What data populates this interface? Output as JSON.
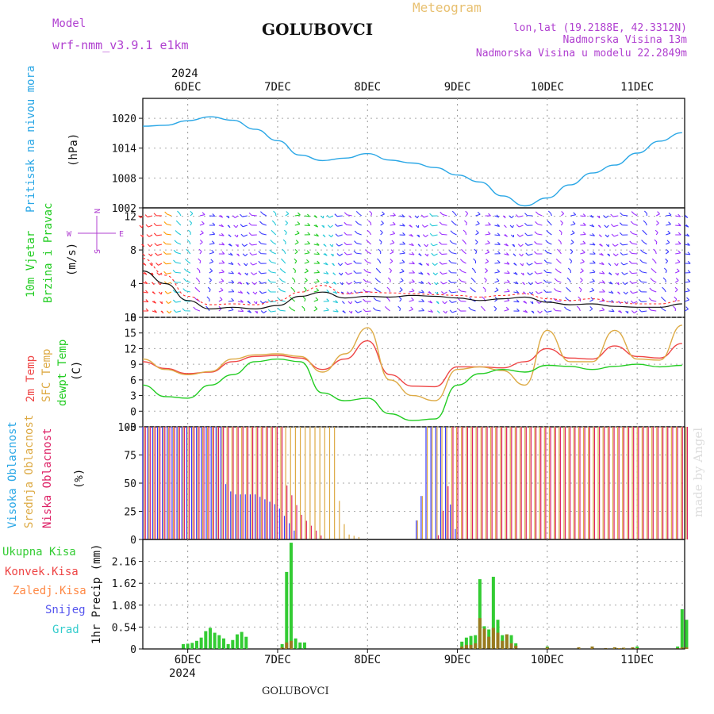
{
  "header": {
    "model_label": "Model",
    "model_name": "wrf-nmm_v3.9.1  e1km",
    "title": "GOLUBOVCI",
    "subtitle": "Meteogram",
    "lonlat": "lon,lat (19.2188E, 42.3312N)",
    "elevation": "Nadmorska Visina 13m",
    "model_elevation": "Nadmorska Visina u modelu 22.2849m",
    "footer": "GOLUBOVCI",
    "watermark": "made by Angel"
  },
  "colors": {
    "pressure": "#2aa7e6",
    "wind_purple": "#9b30ff",
    "wind_blue": "#3a3aff",
    "wind_cyan": "#22c8d8",
    "wind_green": "#22cc22",
    "wind_orange": "#ff9a00",
    "wind_red": "#ff3030",
    "t2m": "#ee4444",
    "sfc": "#ddaa44",
    "dewpt": "#22cc22",
    "cloud_high": "#3a3aff",
    "cloud_mid": "#ddaa44",
    "cloud_low": "#dd2266",
    "precip_total": "#33cc33",
    "precip_conv": "#ee4444",
    "precip_frozen": "#ff8844",
    "snow": "#5555ee",
    "hail": "#33cccc"
  },
  "chart_data": [
    {
      "type": "line",
      "name": "pressure",
      "ylabel_lines": [
        "Pritisak na nivou mora",
        "(hPa)"
      ],
      "ylim": [
        1002,
        1024
      ],
      "yticks": [
        1002,
        1008,
        1014,
        1020
      ],
      "x_days": [
        0,
        0.25,
        0.5,
        0.75,
        1.0,
        1.25,
        1.5,
        1.75,
        2.0,
        2.25,
        2.5,
        2.75,
        3.0,
        3.25,
        3.5,
        3.75,
        4.0,
        4.25,
        4.5,
        4.75,
        5.0,
        5.25,
        5.5,
        5.75,
        6.0
      ],
      "values": [
        1018.4,
        1018.6,
        1019.5,
        1020.3,
        1019.6,
        1017.8,
        1015.5,
        1012.6,
        1011.5,
        1012.0,
        1012.9,
        1011.6,
        1011.0,
        1010.1,
        1008.6,
        1007.2,
        1004.4,
        1002.4,
        1004.0,
        1006.6,
        1009.0,
        1010.6,
        1013.0,
        1015.4,
        1017.1
      ]
    },
    {
      "type": "wind_barbs",
      "name": "wind",
      "ylabel_lines": [
        "10m Vjetar",
        "Brzina i Pravac",
        "(m/s)"
      ],
      "compass": [
        "N",
        "S",
        "E",
        "W"
      ],
      "ylim": [
        0,
        13
      ],
      "yticks": [
        0,
        4,
        8,
        12
      ],
      "x_days": [
        0,
        0.25,
        0.5,
        0.75,
        1.0,
        1.25,
        1.5,
        1.75,
        2.0,
        2.25,
        2.5,
        2.75,
        3.0,
        3.25,
        3.5,
        3.75,
        4.0,
        4.25,
        4.5,
        4.75,
        5.0,
        5.25,
        5.5,
        5.75,
        6.0
      ],
      "speed": [
        5.5,
        4.0,
        2.0,
        1.0,
        1.2,
        1.0,
        1.4,
        2.5,
        3.0,
        2.3,
        2.5,
        2.4,
        2.6,
        2.5,
        2.3,
        2.0,
        2.2,
        2.4,
        1.8,
        1.5,
        1.6,
        1.3,
        1.2,
        1.2,
        1.6
      ],
      "gust": [
        7.0,
        5.0,
        2.5,
        1.5,
        1.6,
        1.5,
        2.0,
        3.0,
        3.8,
        2.8,
        3.0,
        2.9,
        2.8,
        2.7,
        2.6,
        2.4,
        2.6,
        2.8,
        2.2,
        2.0,
        2.2,
        1.8,
        1.6,
        1.6,
        2.0
      ]
    },
    {
      "type": "line",
      "name": "temperature",
      "ylabel_lines": [
        "2m Temp",
        "SFC Temp",
        "dewpt Temp",
        "(C)"
      ],
      "ylim": [
        -3,
        18
      ],
      "yticks": [
        -3,
        0,
        3,
        6,
        9,
        12,
        15,
        18
      ],
      "x_days": [
        0,
        0.25,
        0.5,
        0.75,
        1.0,
        1.25,
        1.5,
        1.75,
        2.0,
        2.25,
        2.5,
        2.75,
        3.0,
        3.25,
        3.5,
        3.75,
        4.0,
        4.25,
        4.5,
        4.75,
        5.0,
        5.25,
        5.5,
        5.75,
        6.0
      ],
      "series": [
        {
          "name": "2m Temp",
          "values": [
            9.5,
            8.2,
            7.2,
            7.5,
            9.5,
            10.5,
            10.7,
            10.2,
            8.0,
            10.0,
            13.5,
            7.0,
            4.8,
            4.7,
            8.5,
            8.5,
            8.3,
            9.5,
            12.0,
            10.2,
            10.0,
            12.5,
            10.5,
            10.2,
            13.0
          ]
        },
        {
          "name": "SFC Temp",
          "values": [
            10.0,
            8.0,
            7.0,
            7.6,
            10.0,
            10.8,
            11.0,
            10.5,
            7.5,
            11.0,
            16.0,
            6.0,
            3.0,
            2.0,
            8.0,
            8.5,
            7.8,
            5.0,
            15.5,
            9.5,
            9.5,
            15.5,
            10.0,
            9.8,
            16.5
          ]
        },
        {
          "name": "dewpt Temp",
          "values": [
            5.0,
            2.8,
            2.5,
            5.0,
            7.0,
            9.5,
            10.0,
            9.5,
            3.5,
            2.0,
            2.5,
            -0.5,
            -1.8,
            -1.5,
            5.0,
            7.2,
            8.0,
            7.5,
            8.8,
            8.6,
            8.0,
            8.6,
            9.0,
            8.5,
            8.8
          ]
        }
      ]
    },
    {
      "type": "bar",
      "name": "clouds",
      "ylabel_lines": [
        "Visoka Oblacnost",
        "Srednja Oblacnost",
        "Niska Oblacnost",
        "(%)"
      ],
      "ylim": [
        0,
        100
      ],
      "yticks": [
        0,
        25,
        50,
        75,
        100
      ],
      "x_days": [
        0,
        0.25,
        0.5,
        0.75,
        1.0,
        1.25,
        1.5,
        1.75,
        2.0,
        2.25,
        2.5,
        2.75,
        3.0,
        3.25,
        3.5,
        3.75,
        4.0,
        4.25,
        4.5,
        4.75,
        5.0,
        5.25,
        5.5,
        5.75,
        6.0
      ],
      "series": [
        {
          "name": "Visoka Oblacnost",
          "values": [
            100,
            100,
            100,
            70,
            40,
            40,
            30,
            0,
            0,
            0,
            0,
            0,
            0,
            100,
            0,
            0,
            0,
            0,
            0,
            0,
            0,
            0,
            0,
            0,
            0
          ]
        },
        {
          "name": "Srednja Oblacnost",
          "values": [
            100,
            100,
            100,
            100,
            100,
            100,
            100,
            100,
            100,
            5,
            0,
            0,
            0,
            100,
            100,
            100,
            100,
            100,
            100,
            100,
            100,
            100,
            100,
            100,
            100
          ]
        },
        {
          "name": "Niska Oblacnost",
          "values": [
            100,
            100,
            100,
            80,
            100,
            100,
            60,
            20,
            0,
            0,
            0,
            0,
            0,
            0,
            100,
            100,
            100,
            100,
            100,
            100,
            100,
            100,
            100,
            100,
            100
          ]
        }
      ]
    },
    {
      "type": "bar",
      "name": "precipitation",
      "ylabel_lines": [
        "1hr Precip (mm)"
      ],
      "legend": [
        "Ukupna Kisa",
        "Konvek.Kisa",
        "Zaledj.Kisa",
        "Snijeg",
        "Grad"
      ],
      "ylim": [
        0,
        2.7
      ],
      "yticks": [
        0,
        0.54,
        1.08,
        1.62,
        2.16
      ],
      "x_days": [
        0.3,
        0.35,
        0.4,
        0.45,
        0.5,
        0.55,
        0.6,
        0.65,
        0.7,
        0.75,
        0.8,
        0.85,
        0.9,
        0.95,
        1.05,
        1.1,
        1.15,
        1.2,
        1.25,
        1.28,
        1.35,
        1.4,
        1.45,
        1.55,
        1.6,
        1.62,
        1.65,
        1.7,
        1.75,
        3.55,
        3.6,
        3.65,
        3.7,
        3.75,
        3.8,
        3.85,
        3.9,
        3.95,
        4.0,
        4.05,
        4.1,
        4.15,
        4.2,
        4.25,
        4.5,
        5.05,
        5.1,
        5.15,
        5.2,
        5.25,
        5.3,
        5.35,
        5.4,
        5.45,
        5.5,
        5.55,
        5.6,
        5.65,
        5.95,
        6.0,
        6.05
      ],
      "values": [
        0,
        0,
        0,
        0,
        0,
        0,
        0,
        0,
        0,
        0,
        0,
        0,
        0,
        0,
        0.1,
        0.1,
        0.12,
        0.2,
        0.28,
        0.46,
        0.4,
        0.34,
        0.3,
        0.22,
        0.16,
        0.08,
        0,
        0.2,
        0,
        0.28,
        0.3,
        0.32,
        0.4,
        0.36,
        0.38,
        1.08,
        1.75,
        0.72,
        0.94,
        0.56,
        0.44,
        0.34,
        0.24,
        0.06,
        0.16,
        0.04,
        0.06,
        0.02,
        0.04,
        0.06,
        0.02,
        0.05,
        0.02,
        0.14,
        0.08,
        0.05,
        0.03,
        0.04,
        0.03,
        0.02,
        0.05
      ],
      "bars": [
        {
          "x": 0.45,
          "total": 0.12,
          "conv": 0.0
        },
        {
          "x": 0.5,
          "total": 0.13,
          "conv": 0.0
        },
        {
          "x": 0.55,
          "total": 0.15,
          "conv": 0.0
        },
        {
          "x": 0.6,
          "total": 0.2,
          "conv": 0.0
        },
        {
          "x": 0.65,
          "total": 0.28,
          "conv": 0.0
        },
        {
          "x": 0.7,
          "total": 0.44,
          "conv": 0.0
        },
        {
          "x": 0.75,
          "total": 0.52,
          "conv": 0.0
        },
        {
          "x": 0.8,
          "total": 0.4,
          "conv": 0.0
        },
        {
          "x": 0.85,
          "total": 0.34,
          "conv": 0.0
        },
        {
          "x": 0.9,
          "total": 0.26,
          "conv": 0.0
        },
        {
          "x": 0.95,
          "total": 0.12,
          "conv": 0.0
        },
        {
          "x": 1.0,
          "total": 0.22,
          "conv": 0.0
        },
        {
          "x": 1.05,
          "total": 0.36,
          "conv": 0.0
        },
        {
          "x": 1.1,
          "total": 0.42,
          "conv": 0.0
        },
        {
          "x": 1.15,
          "total": 0.3,
          "conv": 0.0
        },
        {
          "x": 1.1,
          "total": 0.0,
          "conv": 0.0
        },
        {
          "x": 1.3,
          "total": 0.0,
          "conv": 0.0
        },
        {
          "x": 1.55,
          "total": 0.12,
          "conv": 0.04
        },
        {
          "x": 1.6,
          "total": 1.9,
          "conv": 0.16
        },
        {
          "x": 1.65,
          "total": 2.62,
          "conv": 0.2
        },
        {
          "x": 1.7,
          "total": 0.26,
          "conv": 0.0
        },
        {
          "x": 1.75,
          "total": 0.16,
          "conv": 0.0
        },
        {
          "x": 1.8,
          "total": 0.16,
          "conv": 0.0
        },
        {
          "x": 3.55,
          "total": 0.18,
          "conv": 0.06
        },
        {
          "x": 3.6,
          "total": 0.28,
          "conv": 0.1
        },
        {
          "x": 3.65,
          "total": 0.32,
          "conv": 0.1
        },
        {
          "x": 3.7,
          "total": 0.34,
          "conv": 0.14
        },
        {
          "x": 3.75,
          "total": 1.72,
          "conv": 0.76
        },
        {
          "x": 3.8,
          "total": 0.56,
          "conv": 0.5
        },
        {
          "x": 3.85,
          "total": 0.48,
          "conv": 0.3
        },
        {
          "x": 3.9,
          "total": 1.78,
          "conv": 0.52
        },
        {
          "x": 3.95,
          "total": 0.72,
          "conv": 0.4
        },
        {
          "x": 4.0,
          "total": 0.34,
          "conv": 0.2
        },
        {
          "x": 4.05,
          "total": 0.36,
          "conv": 0.36
        },
        {
          "x": 4.1,
          "total": 0.34,
          "conv": 0.14
        },
        {
          "x": 4.15,
          "total": 0.14,
          "conv": 0.08
        },
        {
          "x": 4.5,
          "total": 0.06,
          "conv": 0.04
        },
        {
          "x": 4.85,
          "total": 0.04,
          "conv": 0.04
        },
        {
          "x": 5.0,
          "total": 0.06,
          "conv": 0.06
        },
        {
          "x": 5.15,
          "total": 0.02,
          "conv": 0.02
        },
        {
          "x": 5.25,
          "total": 0.04,
          "conv": 0.04
        },
        {
          "x": 5.3,
          "total": 0.02,
          "conv": 0.02
        },
        {
          "x": 5.35,
          "total": 0.03,
          "conv": 0.03
        },
        {
          "x": 5.45,
          "total": 0.04,
          "conv": 0.04
        },
        {
          "x": 5.5,
          "total": 0.06,
          "conv": 0.02
        },
        {
          "x": 5.95,
          "total": 0.06,
          "conv": 0.02
        },
        {
          "x": 6.0,
          "total": 0.98,
          "conv": 0.04
        },
        {
          "x": 6.05,
          "total": 0.72,
          "conv": 0.04
        }
      ]
    }
  ],
  "axis": {
    "year": "2024",
    "day_labels": [
      "6DEC",
      "7DEC",
      "8DEC",
      "9DEC",
      "10DEC",
      "11DEC"
    ],
    "day_positions": [
      0.5,
      1.5,
      2.5,
      3.5,
      4.5,
      5.5
    ]
  }
}
